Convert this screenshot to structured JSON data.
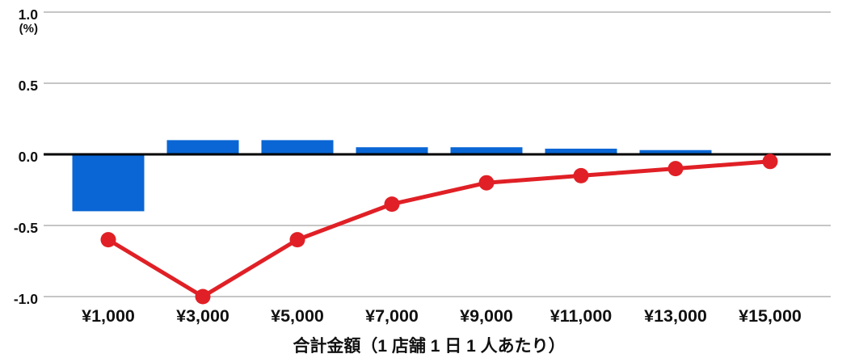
{
  "chart_data": {
    "type": "combo",
    "subtypes": [
      "bar",
      "line"
    ],
    "categories": [
      "¥1,000",
      "¥3,000",
      "¥5,000",
      "¥7,000",
      "¥9,000",
      "¥11,000",
      "¥13,000",
      "¥15,000"
    ],
    "series": [
      {
        "name": "bars",
        "type": "bar",
        "color": "#0a66d4",
        "values": [
          -0.4,
          0.1,
          0.1,
          0.05,
          0.05,
          0.04,
          0.03,
          0
        ]
      },
      {
        "name": "line",
        "type": "line",
        "color": "#e02026",
        "values": [
          -0.6,
          -1.0,
          -0.6,
          -0.35,
          -0.2,
          -0.15,
          -0.1,
          -0.05
        ]
      }
    ],
    "title": "",
    "xlabel": "合計金額（1 店舗 1 日 1 人あたり）",
    "ylabel_unit": "(%)",
    "ylim": [
      -1.0,
      1.0
    ],
    "yticks": [
      1.0,
      0.5,
      0.0,
      -0.5,
      -1.0
    ],
    "ytick_labels": [
      "1.0",
      "0.5",
      "0.0",
      "-0.5",
      "-1.0"
    ],
    "grid": true,
    "legend_position": "none",
    "colors": {
      "grid_line": "#c6c6c6",
      "zero_axis": "#000000",
      "text": "#111111",
      "background": "#ffffff"
    }
  }
}
